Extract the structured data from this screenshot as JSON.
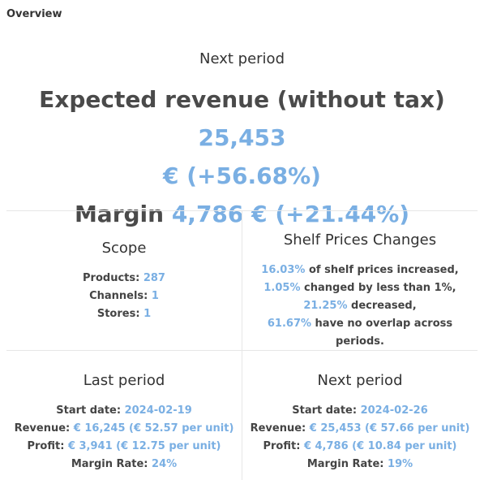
{
  "section": {
    "title": "Overview"
  },
  "hero": {
    "subtitle": "Next period",
    "revenue_label": "Expected revenue (without tax)",
    "revenue_value_1": "25,453",
    "revenue_value_2": "€ (+56.68%)",
    "margin_label": "Margin",
    "margin_value": "4,786 € (+21.44%)"
  },
  "scope": {
    "title": "Scope",
    "products_label": "Products:",
    "products_value": "287",
    "channels_label": "Channels:",
    "channels_value": "1",
    "stores_label": "Stores:",
    "stores_value": "1"
  },
  "shelf": {
    "title": "Shelf Prices Changes",
    "rows": [
      {
        "value": "16.03%",
        "text": " of shelf prices increased,"
      },
      {
        "value": "1.05%",
        "text": " changed by less than 1%,"
      },
      {
        "value": "21.25%",
        "text": " decreased,"
      },
      {
        "value": "61.67%",
        "text": " have no overlap across periods."
      }
    ]
  },
  "last_period": {
    "title": "Last period",
    "start_label": "Start date:",
    "start_value": "2024-02-19",
    "revenue_label": "Revenue:",
    "revenue_value": "€ 16,245 (€ 52.57 per unit)",
    "profit_label": "Profit:",
    "profit_value": "€ 3,941 (€ 12.75 per unit)",
    "margin_label": "Margin Rate:",
    "margin_value": "24%"
  },
  "next_period": {
    "title": "Next period",
    "start_label": "Start date:",
    "start_value": "2024-02-26",
    "revenue_label": "Revenue:",
    "revenue_value": "€ 25,453 (€ 57.66 per unit)",
    "profit_label": "Profit:",
    "profit_value": "€ 4,786 (€ 10.84 per unit)",
    "margin_label": "Margin Rate:",
    "margin_value": "19%"
  },
  "colors": {
    "accent": "#7aafe3",
    "text": "#4a4a4a",
    "divider": "#e6e6e6"
  }
}
